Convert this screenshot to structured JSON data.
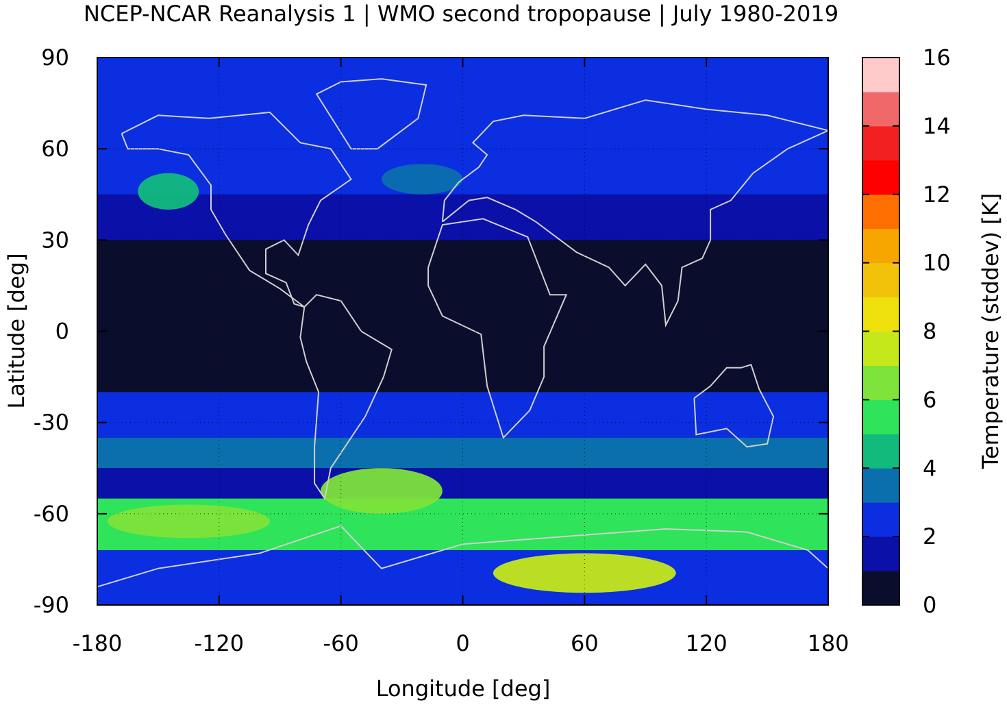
{
  "chart_data": {
    "type": "heatmap",
    "title": "NCEP-NCAR Reanalysis 1 | WMO second tropopause | July 1980-2019",
    "xlabel": "Longitude [deg]",
    "ylabel": "Latitude [deg]",
    "xlim": [
      -180,
      180
    ],
    "ylim": [
      -90,
      90
    ],
    "x_ticks": [
      "-180",
      "-120",
      "-60",
      "0",
      "60",
      "120",
      "180"
    ],
    "y_ticks": [
      "90",
      "60",
      "30",
      "0",
      "-30",
      "-60",
      "-90"
    ],
    "grid": "dotted",
    "colorbar": {
      "label": "Temperature (stddev) [K]",
      "range": [
        0,
        16
      ],
      "tick_labels": [
        "16",
        "14",
        "12",
        "10",
        "8",
        "6",
        "4",
        "2",
        "0"
      ],
      "colors": [
        "#0b0d2c",
        "#0a10a8",
        "#0a2ee0",
        "#0b6fad",
        "#12ba7c",
        "#2fe35a",
        "#7ee33a",
        "#c5e81a",
        "#ede00c",
        "#f2c20a",
        "#f7a600",
        "#ff6e00",
        "#ff0000",
        "#f22020",
        "#f06868",
        "#ffcaca"
      ]
    },
    "lat_bands": [
      {
        "lat": [
          60,
          90
        ],
        "value": 2.2
      },
      {
        "lat": [
          45,
          60
        ],
        "value": 2.8
      },
      {
        "lat": [
          30,
          45
        ],
        "value": 1.8
      },
      {
        "lat": [
          -20,
          30
        ],
        "value": 0.5
      },
      {
        "lat": [
          -35,
          -20
        ],
        "value": 2.3
      },
      {
        "lat": [
          -45,
          -35
        ],
        "value": 3.8
      },
      {
        "lat": [
          -55,
          -45
        ],
        "value": 1.0
      },
      {
        "lat": [
          -72,
          -55
        ],
        "value": 5.5
      },
      {
        "lat": [
          -90,
          -72
        ],
        "value": 2.8
      }
    ],
    "highlights": [
      {
        "region": "East Antarctica",
        "lon": [
          15,
          105
        ],
        "lat": [
          -86,
          -73
        ],
        "value": 7.8
      },
      {
        "region": "South Pacific storm band",
        "lon": [
          -175,
          -95
        ],
        "lat": [
          -68,
          -57
        ],
        "value": 6.5
      },
      {
        "region": "South Atlantic",
        "lon": [
          -70,
          -10
        ],
        "lat": [
          -60,
          -45
        ],
        "value": 6.0
      },
      {
        "region": "North Pacific",
        "lon": [
          -160,
          -130
        ],
        "lat": [
          40,
          52
        ],
        "value": 4.5
      },
      {
        "region": "North Atlantic",
        "lon": [
          -40,
          0
        ],
        "lat": [
          45,
          55
        ],
        "value": 3.8
      }
    ]
  }
}
